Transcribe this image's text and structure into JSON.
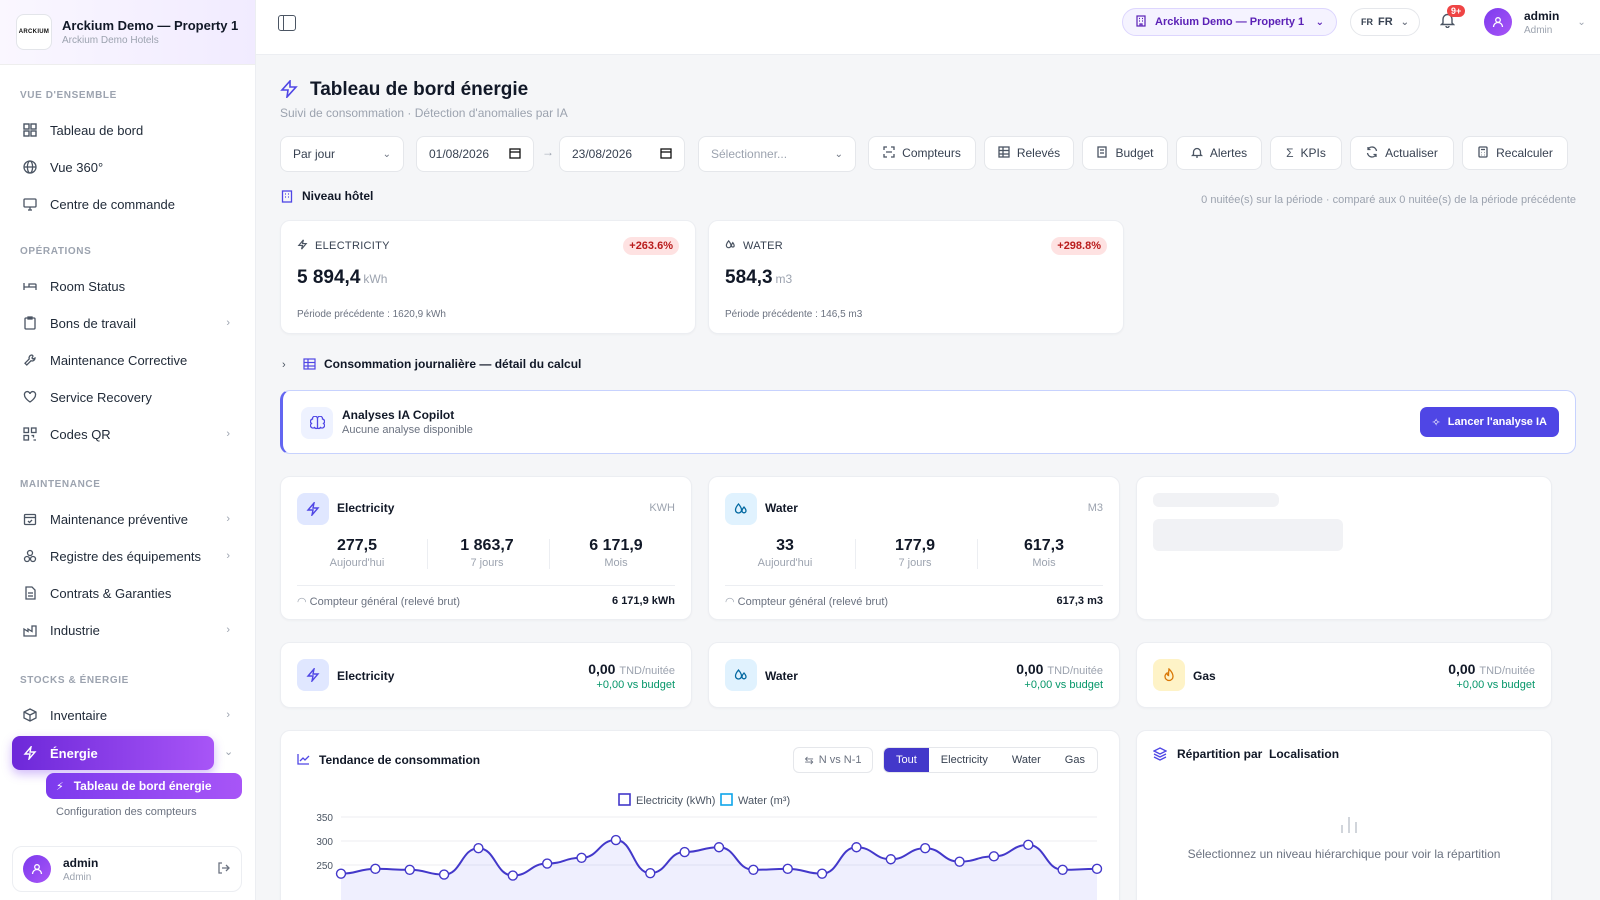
{
  "sidebar": {
    "org_name": "Arckium Demo — Property 1",
    "org_sub": "Arckium Demo Hotels",
    "logo_text": "ARCKIUM",
    "sections": {
      "overview": "VUE D'ENSEMBLE",
      "operations": "OPÉRATIONS",
      "maintenance": "MAINTENANCE",
      "stocks": "STOCKS & ÉNERGIE"
    },
    "items": {
      "dashboard": "Tableau de bord",
      "view360": "Vue 360°",
      "command": "Centre de commande",
      "room_status": "Room Status",
      "work_orders": "Bons de travail",
      "corrective": "Maintenance Corrective",
      "service_recovery": "Service Recovery",
      "qr_codes": "Codes QR",
      "preventive": "Maintenance préventive",
      "equipment": "Registre des équipements",
      "contracts": "Contrats & Garanties",
      "industry": "Industrie",
      "inventory": "Inventaire",
      "energy": "Énergie",
      "energy_dashboard": "Tableau de bord énergie",
      "meters_config": "Configuration des compteurs"
    },
    "user": {
      "name": "admin",
      "role": "Admin"
    }
  },
  "topbar": {
    "property": "Arckium Demo — Property 1",
    "lang_code": "FR",
    "lang_label": "FR",
    "notif_count": "9+",
    "user_name": "admin",
    "user_role": "Admin"
  },
  "page": {
    "title": "Tableau de bord énergie",
    "subtitle": "Suivi de consommation · Détection d'anomalies par IA"
  },
  "filters": {
    "period": "Par jour",
    "date_from": "01/08/2026",
    "date_to": "23/08/2026",
    "select_placeholder": "Sélectionner...",
    "buttons": {
      "meters": "Compteurs",
      "readings": "Relevés",
      "budget": "Budget",
      "alerts": "Alertes",
      "kpis": "KPIs",
      "refresh": "Actualiser",
      "recalc": "Recalculer"
    }
  },
  "level": {
    "title": "Niveau hôtel",
    "meta": "0 nuitée(s) sur la période · comparé aux 0 nuitée(s) de la période précédente"
  },
  "kpis": [
    {
      "label": "ELECTRICITY",
      "delta": "+263.6%",
      "value": "5 894,4",
      "unit": "kWh",
      "prev": "Période précédente : 1620,9 kWh"
    },
    {
      "label": "WATER",
      "delta": "+298.8%",
      "value": "584,3",
      "unit": "m3",
      "prev": "Période précédente : 146,5 m3"
    }
  ],
  "detail_title": "Consommation journalière — détail du calcul",
  "ai": {
    "title": "Analyses IA Copilot",
    "subtitle": "Aucune analyse disponible",
    "button": "Lancer l'analyse IA"
  },
  "meters": [
    {
      "title": "Electricity",
      "unit": "KWH",
      "today": "277,5",
      "week": "1 863,7",
      "month": "6 171,9",
      "foot_label": "Compteur général (relevé brut)",
      "foot_value": "6 171,9 kWh"
    },
    {
      "title": "Water",
      "unit": "M3",
      "today": "33",
      "week": "177,9",
      "month": "617,3",
      "foot_label": "Compteur général (relevé brut)",
      "foot_value": "617,3 m3"
    }
  ],
  "stat_labels": {
    "today": "Aujourd'hui",
    "week": "7 jours",
    "month": "Mois"
  },
  "budget": [
    {
      "title": "Electricity",
      "value": "0,00",
      "unit": "TND/nuitée",
      "delta": "+0,00 vs budget"
    },
    {
      "title": "Water",
      "value": "0,00",
      "unit": "TND/nuitée",
      "delta": "+0,00 vs budget"
    },
    {
      "title": "Gas",
      "value": "0,00",
      "unit": "TND/nuitée",
      "delta": "+0,00 vs budget"
    }
  ],
  "trend": {
    "title": "Tendance de consommation",
    "compare": "N vs N-1",
    "tabs": [
      "Tout",
      "Electricity",
      "Water",
      "Gas"
    ],
    "active_tab": "Tout"
  },
  "repartition": {
    "title": "Répartition par",
    "title_strong": "Localisation",
    "empty": "Sélectionnez un niveau hiérarchique pour voir la répartition"
  },
  "chart_data": {
    "type": "line",
    "legend": [
      "Electricity (kWh)",
      "Water (m³)"
    ],
    "legend_position": "top",
    "y_ticks": [
      250,
      300,
      350
    ],
    "ylim": [
      200,
      350
    ],
    "series": [
      {
        "name": "Electricity (kWh)",
        "color": "#4338ca",
        "values": [
          232,
          242,
          240,
          230,
          285,
          228,
          253,
          265,
          302,
          233,
          277,
          287,
          240,
          242,
          232,
          287,
          262,
          285,
          257,
          268,
          292,
          240,
          242
        ]
      },
      {
        "name": "Water (m³)",
        "color": "#0ea5e9",
        "values": []
      }
    ],
    "grid": true
  }
}
